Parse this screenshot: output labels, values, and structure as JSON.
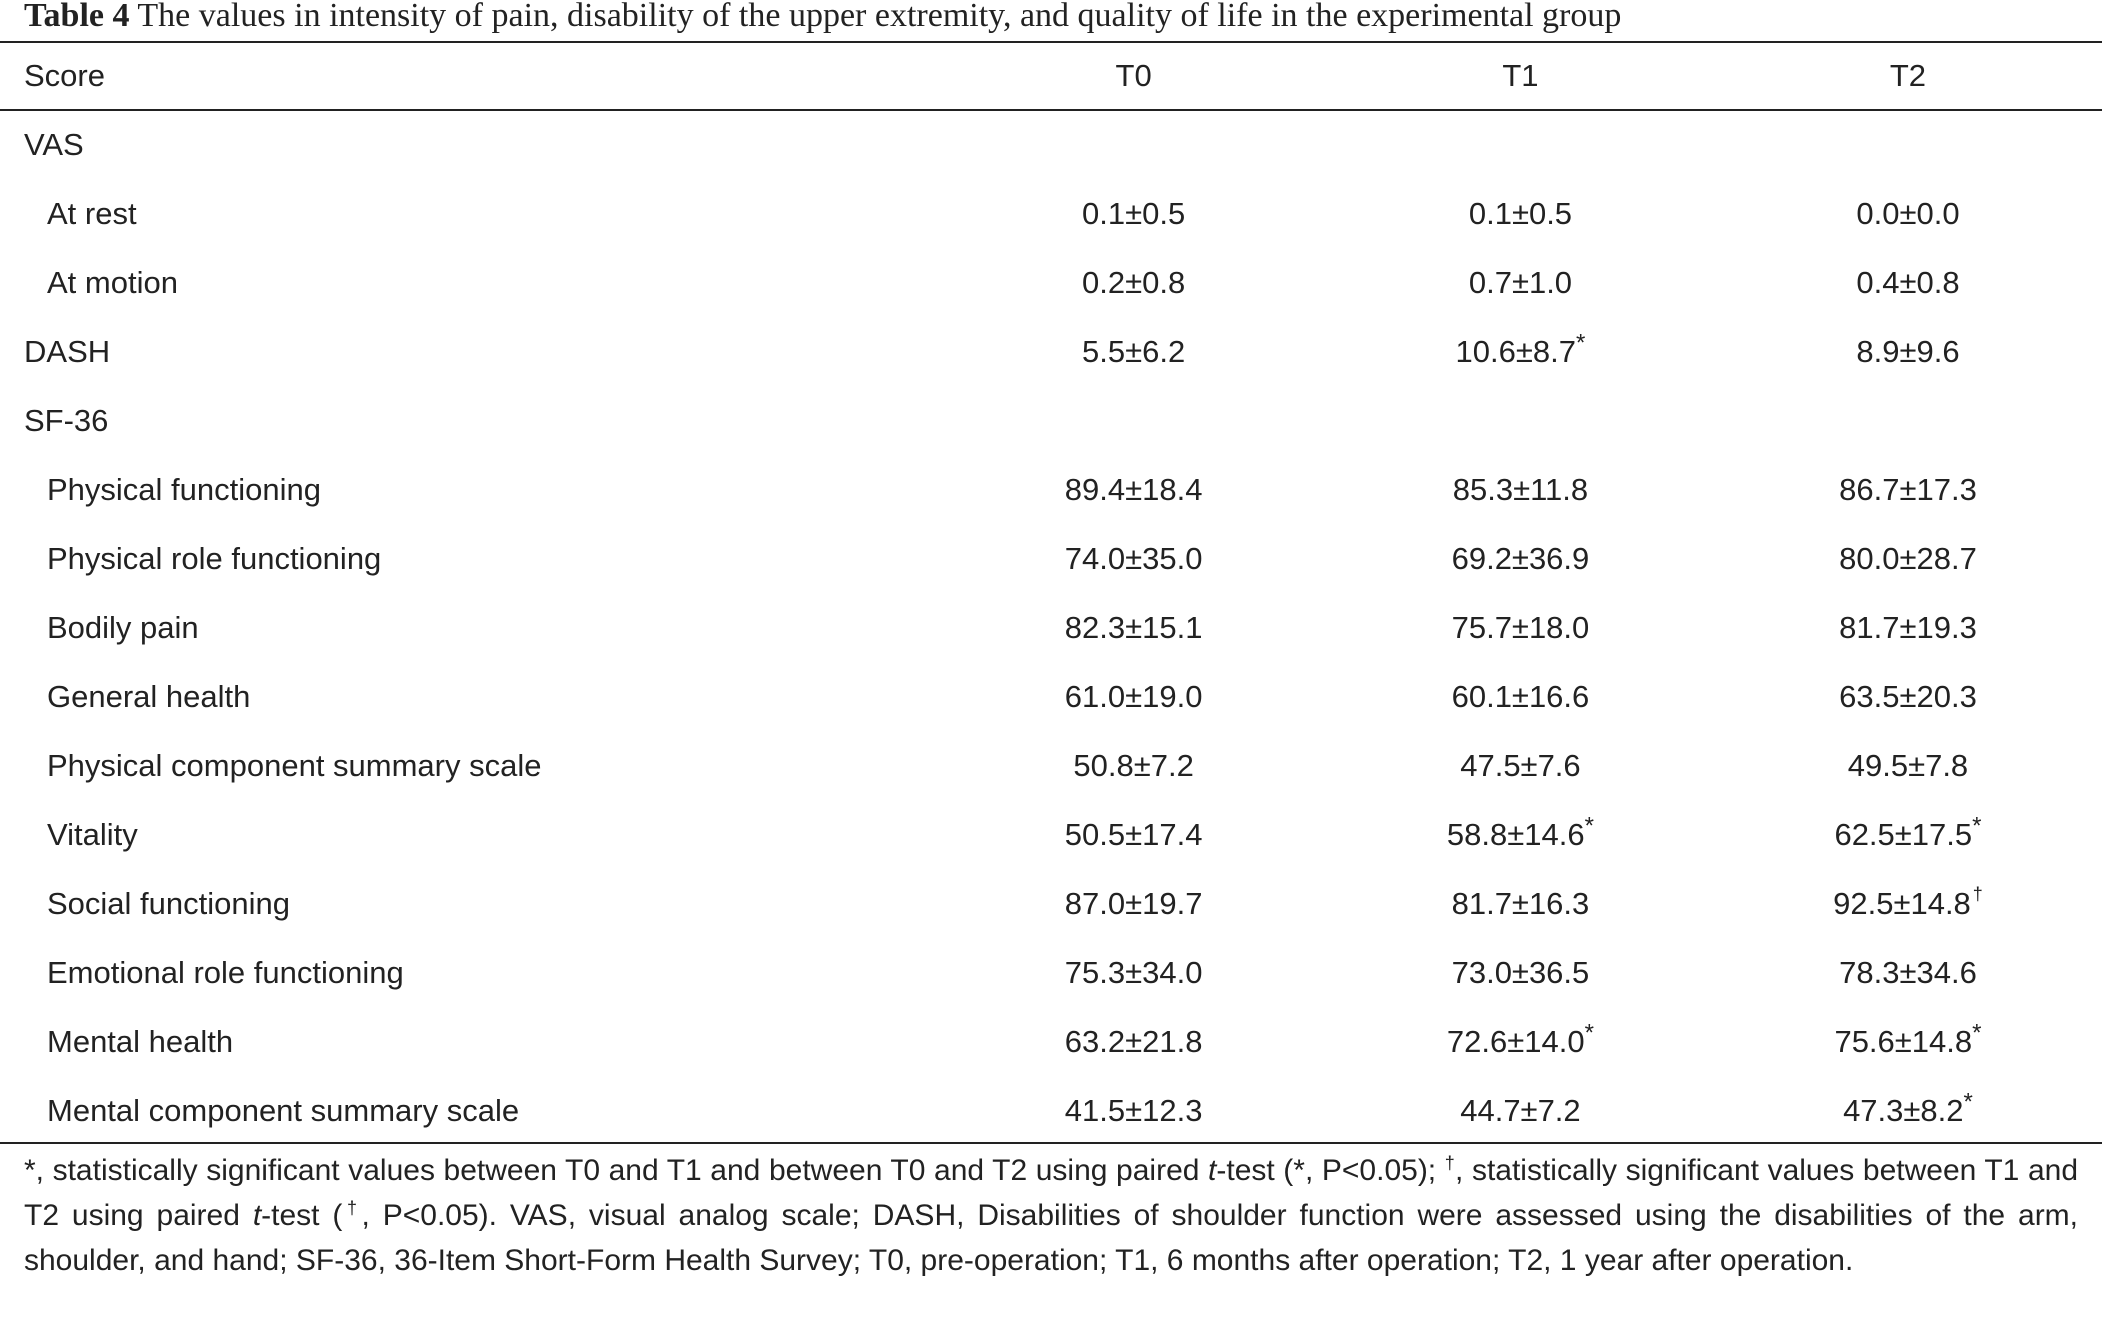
{
  "caption": {
    "label": "Table 4",
    "text": "The values in intensity of pain, disability of the upper extremity, and quality of life in the experimental group"
  },
  "columns": [
    "Score",
    "T0",
    "T1",
    "T2"
  ],
  "rows": [
    {
      "label": "VAS",
      "level": 0,
      "values": [
        "",
        "",
        ""
      ]
    },
    {
      "label": "At rest",
      "level": 1,
      "values": [
        "0.1±0.5",
        "0.1±0.5",
        "0.0±0.0"
      ]
    },
    {
      "label": "At motion",
      "level": 1,
      "values": [
        "0.2±0.8",
        "0.7±1.0",
        "0.4±0.8"
      ]
    },
    {
      "label": "DASH",
      "level": 0,
      "values": [
        "5.5±6.2",
        "10.6±8.7*",
        "8.9±9.6"
      ]
    },
    {
      "label": "SF-36",
      "level": 0,
      "values": [
        "",
        "",
        ""
      ]
    },
    {
      "label": "Physical functioning",
      "level": 1,
      "values": [
        "89.4±18.4",
        "85.3±11.8",
        "86.7±17.3"
      ]
    },
    {
      "label": "Physical role functioning",
      "level": 1,
      "values": [
        "74.0±35.0",
        "69.2±36.9",
        "80.0±28.7"
      ]
    },
    {
      "label": "Bodily pain",
      "level": 1,
      "values": [
        "82.3±15.1",
        "75.7±18.0",
        "81.7±19.3"
      ]
    },
    {
      "label": "General health",
      "level": 1,
      "values": [
        "61.0±19.0",
        "60.1±16.6",
        "63.5±20.3"
      ]
    },
    {
      "label": "Physical component summary scale",
      "level": 1,
      "values": [
        "50.8±7.2",
        "47.5±7.6",
        "49.5±7.8"
      ]
    },
    {
      "label": "Vitality",
      "level": 1,
      "values": [
        "50.5±17.4",
        "58.8±14.6*",
        "62.5±17.5*"
      ]
    },
    {
      "label": "Social functioning",
      "level": 1,
      "values": [
        "87.0±19.7",
        "81.7±16.3",
        "92.5±14.8†"
      ]
    },
    {
      "label": "Emotional role functioning",
      "level": 1,
      "values": [
        "75.3±34.0",
        "73.0±36.5",
        "78.3±34.6"
      ]
    },
    {
      "label": "Mental health",
      "level": 1,
      "values": [
        "63.2±21.8",
        "72.6±14.0*",
        "75.6±14.8*"
      ]
    },
    {
      "label": "Mental component summary scale",
      "level": 1,
      "values": [
        "41.5±12.3",
        "44.7±7.2",
        "47.3±8.2*"
      ]
    }
  ],
  "footnote": {
    "p1": "*, statistically significant values between T0 and T1 and between T0 and T2 using paired ",
    "t1": "t",
    "p2": "-test (*, P<0.05); ",
    "d1": "†",
    "p3": ", statistically significant values between T1 and T2 using paired ",
    "t2": "t",
    "p4": "-test (",
    "d2": "†",
    "p5": ", P<0.05). VAS, visual analog scale; DASH, Disabilities of shoulder function were assessed using the disabilities of the arm, shoulder, and hand; SF-36, 36-Item Short-Form Health Survey; T0, pre-operation; T1, 6 months after operation; T2, 1 year after operation."
  }
}
